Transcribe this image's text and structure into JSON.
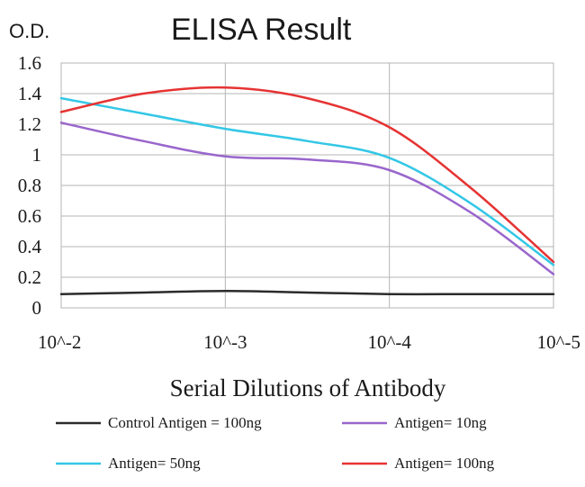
{
  "chart_data": {
    "type": "line",
    "title": "ELISA Result",
    "ylabel": "O.D.",
    "xlabel": "Serial Dilutions of Antibody",
    "categories": [
      "10^-2",
      "10^-3",
      "10^-4",
      "10^-5"
    ],
    "ylim": [
      0,
      1.6
    ],
    "yticks": [
      "0",
      "0.2",
      "0.4",
      "0.6",
      "0.8",
      "1",
      "1.2",
      "1.4",
      "1.6"
    ],
    "grid": "vertical and horizontal",
    "legend_position": "bottom",
    "series": [
      {
        "name": "Control Antigen = 100ng",
        "color": "#2b2b2b",
        "x": [
          0,
          0.5,
          1,
          1.5,
          2,
          2.5,
          3
        ],
        "values": [
          0.09,
          0.1,
          0.11,
          0.1,
          0.09,
          0.09,
          0.09
        ]
      },
      {
        "name": "Antigen= 10ng",
        "color": "#9966cc",
        "x": [
          0,
          0.5,
          1,
          1.5,
          2,
          2.5,
          3
        ],
        "values": [
          1.21,
          1.09,
          0.99,
          0.97,
          0.9,
          0.62,
          0.22
        ]
      },
      {
        "name": "Antigen= 50ng",
        "color": "#33c7e6",
        "x": [
          0,
          0.5,
          1,
          1.5,
          2,
          2.5,
          3
        ],
        "values": [
          1.37,
          1.27,
          1.17,
          1.09,
          0.98,
          0.68,
          0.28
        ]
      },
      {
        "name": "Antigen= 100ng",
        "color": "#e63333",
        "x": [
          0,
          0.5,
          1,
          1.5,
          2,
          2.5,
          3
        ],
        "values": [
          1.28,
          1.4,
          1.44,
          1.37,
          1.18,
          0.78,
          0.3
        ]
      }
    ]
  }
}
